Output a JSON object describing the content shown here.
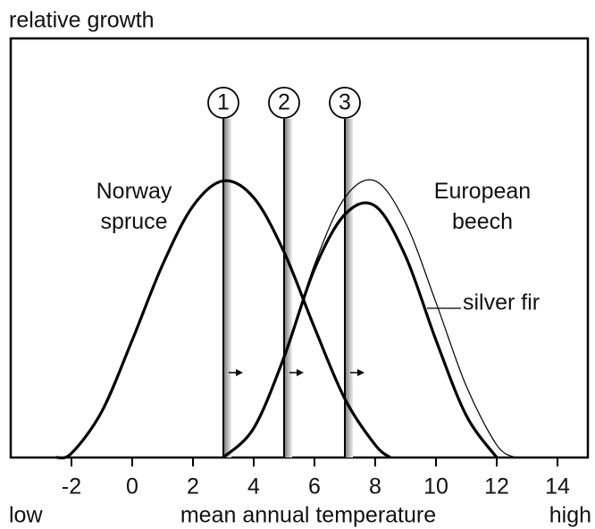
{
  "chart_data": {
    "type": "line",
    "title": "relative growth",
    "xlabel": "mean annual temperature",
    "x_low_label": "low",
    "x_high_label": "high",
    "xlim": [
      -4,
      15
    ],
    "xticks": [
      -2,
      0,
      2,
      4,
      6,
      8,
      10,
      12,
      14
    ],
    "ylim": [
      0,
      1
    ],
    "series": [
      {
        "name": "Norway spruce",
        "color": "#000000",
        "x": [
          -2.5,
          -2,
          -1,
          0,
          1,
          2,
          3,
          4,
          5,
          6,
          7,
          8,
          8.5
        ],
        "values": [
          0,
          0.01,
          0.11,
          0.28,
          0.46,
          0.6,
          0.66,
          0.62,
          0.49,
          0.31,
          0.14,
          0.03,
          0
        ]
      },
      {
        "name": "European beech",
        "color": "#000000",
        "x": [
          3,
          4,
          5,
          6,
          7,
          8,
          9,
          10,
          11,
          12
        ],
        "values": [
          0,
          0.07,
          0.24,
          0.45,
          0.58,
          0.6,
          0.48,
          0.28,
          0.1,
          0
        ]
      },
      {
        "name": "silver fir",
        "color": "#000000",
        "x": [
          3,
          4,
          5,
          6,
          7,
          8,
          9,
          10,
          11,
          12,
          12.6
        ],
        "values": [
          0,
          0.07,
          0.24,
          0.46,
          0.62,
          0.66,
          0.56,
          0.37,
          0.17,
          0.03,
          0
        ]
      }
    ],
    "markers": [
      {
        "x": 3,
        "label": "1"
      },
      {
        "x": 5,
        "label": "2"
      },
      {
        "x": 7,
        "label": "3"
      }
    ]
  }
}
